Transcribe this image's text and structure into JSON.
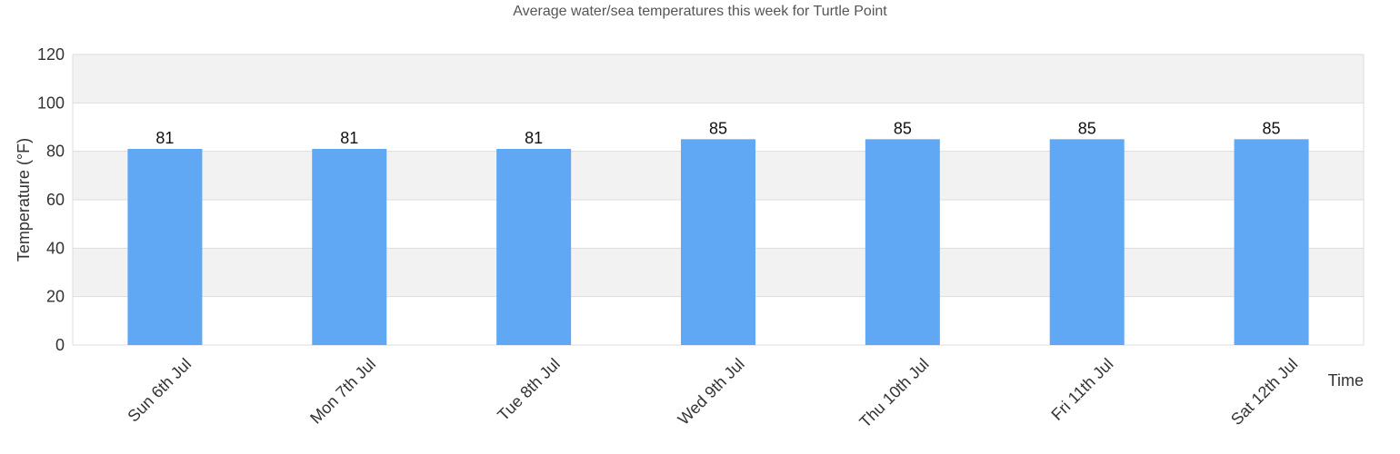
{
  "chart_data": {
    "type": "bar",
    "title": "Average water/sea temperatures this week for Turtle Point",
    "xlabel": "Time",
    "ylabel": "Temperature (°F)",
    "categories": [
      "Sun 6th Jul",
      "Mon 7th Jul",
      "Tue 8th Jul",
      "Wed 9th Jul",
      "Thu 10th Jul",
      "Fri 11th Jul",
      "Sat 12th Jul"
    ],
    "values": [
      81,
      81,
      81,
      85,
      85,
      85,
      85
    ],
    "ylim": [
      0,
      120
    ],
    "yticks": [
      0,
      20,
      40,
      60,
      80,
      100,
      120
    ],
    "grid": true,
    "bar_color": "#60a7f4",
    "band_color": "#f2f2f2"
  }
}
